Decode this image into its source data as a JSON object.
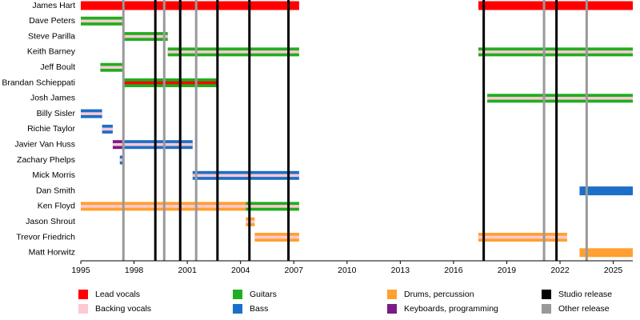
{
  "chart_data": {
    "type": "timeline",
    "xlim": [
      1995,
      2026.1
    ],
    "xticks": [
      1995,
      1998,
      2001,
      2004,
      2007,
      2010,
      2013,
      2016,
      2019,
      2022,
      2025
    ],
    "roles": [
      {
        "name": "Lead vocals",
        "color": "#ff0000"
      },
      {
        "name": "Backing vocals",
        "color": "#ffc9d1"
      },
      {
        "name": "Guitars",
        "color": "#1fae1f"
      },
      {
        "name": "Bass",
        "color": "#1b6fc8"
      },
      {
        "name": "Drums, percussion",
        "color": "#ffa030"
      },
      {
        "name": "Keyboards, programming",
        "color": "#7a1a86"
      }
    ],
    "releases": [
      {
        "name": "Studio release",
        "color": "#000000",
        "years": [
          1999.2,
          2000.6,
          2002.7,
          2004.5,
          2006.7,
          2017.7,
          2021.8
        ]
      },
      {
        "name": "Other release",
        "color": "#999999",
        "years": [
          1997.4,
          1999.7,
          2001.5,
          2021.1,
          2023.5
        ]
      }
    ],
    "members": [
      {
        "name": "James Hart",
        "periods": [
          {
            "role": "Lead vocals",
            "start": 1995,
            "end": 2007.3
          },
          {
            "role": "Lead vocals",
            "start": 2017.4,
            "end": 2026.1
          }
        ]
      },
      {
        "name": "Dave Peters",
        "periods": [
          {
            "role": "Guitars",
            "stripe": "Backing vocals",
            "start": 1995,
            "end": 1997.4
          }
        ]
      },
      {
        "name": "Steve Parilla",
        "periods": [
          {
            "role": "Guitars",
            "stripe": "Backing vocals",
            "start": 1997.4,
            "end": 1999.9
          }
        ]
      },
      {
        "name": "Keith Barney",
        "periods": [
          {
            "role": "Guitars",
            "stripe": "Backing vocals",
            "start": 1999.9,
            "end": 2007.3
          },
          {
            "role": "Guitars",
            "stripe": "Backing vocals",
            "start": 2017.4,
            "end": 2026.1
          }
        ]
      },
      {
        "name": "Jeff Boult",
        "periods": [
          {
            "role": "Guitars",
            "stripe": "Backing vocals",
            "start": 1996.1,
            "end": 1997.4
          }
        ]
      },
      {
        "name": "Brandan Schieppati",
        "periods": [
          {
            "role": "Guitars",
            "stripe": "Lead vocals",
            "start": 1997.4,
            "end": 2002.75
          }
        ]
      },
      {
        "name": "Josh James",
        "periods": [
          {
            "role": "Guitars",
            "stripe": "Backing vocals",
            "start": 2017.9,
            "end": 2026.1
          }
        ]
      },
      {
        "name": "Billy Sisler",
        "periods": [
          {
            "role": "Bass",
            "stripe": "Backing vocals",
            "start": 1995,
            "end": 1996.2
          }
        ]
      },
      {
        "name": "Richie Taylor",
        "periods": [
          {
            "role": "Bass",
            "stripe": "Backing vocals",
            "start": 1996.2,
            "end": 1996.8
          }
        ]
      },
      {
        "name": "Javier Van Huss",
        "periods": [
          {
            "role": "Keyboards, programming",
            "stripe": "Backing vocals",
            "start": 1996.8,
            "end": 1997.4
          },
          {
            "role": "Bass",
            "stripe": "Backing vocals",
            "start": 1997.4,
            "end": 2001.3
          }
        ]
      },
      {
        "name": "Zachary Phelps",
        "periods": [
          {
            "role": "Bass",
            "stripe": "Backing vocals",
            "start": 1997.2,
            "end": 1997.4
          }
        ]
      },
      {
        "name": "Mick Morris",
        "periods": [
          {
            "role": "Bass",
            "stripe": "Backing vocals",
            "start": 2001.3,
            "end": 2007.3
          }
        ]
      },
      {
        "name": "Dan Smith",
        "periods": [
          {
            "role": "Bass",
            "start": 2023.1,
            "end": 2026.1
          }
        ]
      },
      {
        "name": "Ken Floyd",
        "periods": [
          {
            "role": "Drums, percussion",
            "stripe": "Backing vocals",
            "start": 1995,
            "end": 2004.3
          },
          {
            "role": "Guitars",
            "stripe": "Backing vocals",
            "start": 2004.3,
            "end": 2007.3
          }
        ]
      },
      {
        "name": "Jason Shrout",
        "periods": [
          {
            "role": "Drums, percussion",
            "stripe": "Backing vocals",
            "start": 2004.3,
            "end": 2004.8
          }
        ]
      },
      {
        "name": "Trevor Friedrich",
        "periods": [
          {
            "role": "Drums, percussion",
            "stripe": "Backing vocals",
            "start": 2004.8,
            "end": 2007.3
          },
          {
            "role": "Drums, percussion",
            "stripe": "Backing vocals",
            "start": 2017.4,
            "end": 2022.4
          }
        ]
      },
      {
        "name": "Matt Horwitz",
        "periods": [
          {
            "role": "Drums, percussion",
            "start": 2023.1,
            "end": 2026.1
          }
        ]
      }
    ]
  }
}
